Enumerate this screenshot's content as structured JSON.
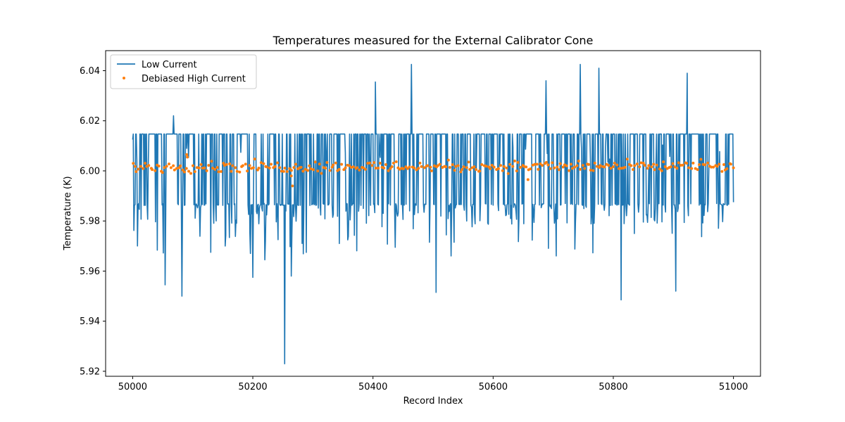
{
  "chart_data": {
    "type": "line",
    "title": "Temperatures measured for the External Calibrator Cone",
    "xlabel": "Record Index",
    "ylabel": "Temperature (K)",
    "xlim": [
      49955,
      51045
    ],
    "ylim": [
      5.918,
      6.048
    ],
    "xticks": [
      50000,
      50200,
      50400,
      50600,
      50800,
      51000
    ],
    "xtick_labels": [
      "50000",
      "50200",
      "50400",
      "50600",
      "50800",
      "51000"
    ],
    "yticks": [
      5.92,
      5.94,
      5.96,
      5.98,
      6.0,
      6.02,
      6.04
    ],
    "ytick_labels": [
      "5.92",
      "5.94",
      "5.96",
      "5.98",
      "6.00",
      "6.02",
      "6.04"
    ],
    "legend_position": "top-left",
    "series": [
      {
        "name": "Low Current",
        "kind": "line",
        "color": "#1f77b4",
        "x_start": 50000,
        "x_end": 51000,
        "n_points": 1000,
        "base_value": 6.0147,
        "low_value": 5.9862,
        "notable_points": [
          {
            "x": 50000,
            "y": 6.0125
          },
          {
            "x": 50054,
            "y": 5.9545
          },
          {
            "x": 50068,
            "y": 6.022
          },
          {
            "x": 50082,
            "y": 5.95
          },
          {
            "x": 50130,
            "y": 5.9675
          },
          {
            "x": 50200,
            "y": 5.9575
          },
          {
            "x": 50220,
            "y": 5.9645
          },
          {
            "x": 50253,
            "y": 5.923
          },
          {
            "x": 50264,
            "y": 5.958
          },
          {
            "x": 50404,
            "y": 6.0355
          },
          {
            "x": 50464,
            "y": 6.0425
          },
          {
            "x": 50505,
            "y": 5.9515
          },
          {
            "x": 50688,
            "y": 6.036
          },
          {
            "x": 50745,
            "y": 6.0425
          },
          {
            "x": 50776,
            "y": 6.041
          },
          {
            "x": 50813,
            "y": 5.9485
          },
          {
            "x": 50904,
            "y": 5.952
          },
          {
            "x": 50923,
            "y": 6.039
          },
          {
            "x": 51000,
            "y": 5.9875
          }
        ]
      },
      {
        "name": "Debiased High Current",
        "kind": "scatter",
        "color": "#ff7f0e",
        "x_start": 50000,
        "x_end": 51000,
        "n_points": 300,
        "mean_value": 6.0017,
        "spread": 0.0025,
        "outliers": [
          {
            "x": 50090,
            "y": 6.0065
          },
          {
            "x": 50091,
            "y": 6.0055
          },
          {
            "x": 50264,
            "y": 5.998
          },
          {
            "x": 50266,
            "y": 5.994
          },
          {
            "x": 50658,
            "y": 5.9965
          }
        ]
      }
    ]
  }
}
